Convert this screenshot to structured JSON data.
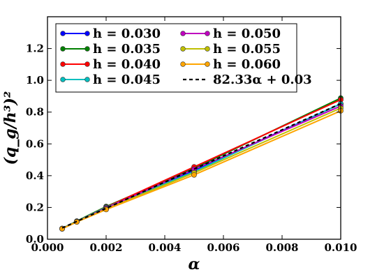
{
  "chart_data": {
    "type": "line",
    "title": "",
    "xlabel": "α",
    "ylabel": "(q_g/h³)²",
    "xlim": [
      0.0,
      0.01
    ],
    "ylim": [
      0.0,
      1.4
    ],
    "grid": false,
    "legend_placement": "top-left",
    "x_ticks": [
      "0.000",
      "0.002",
      "0.004",
      "0.006",
      "0.008",
      "0.010"
    ],
    "y_ticks": [
      "0.0",
      "0.2",
      "0.4",
      "0.6",
      "0.8",
      "1.0",
      "1.2"
    ],
    "x": [
      0.0005,
      0.001,
      0.002,
      0.005,
      0.01
    ],
    "series": [
      {
        "name": "h = 0.030",
        "color": "#0000ff",
        "values": [
          0.066,
          0.11,
          0.198,
          0.432,
          0.852
        ]
      },
      {
        "name": "h = 0.035",
        "color": "#008000",
        "values": [
          0.068,
          0.114,
          0.206,
          0.446,
          0.888
        ]
      },
      {
        "name": "h = 0.040",
        "color": "#ff0000",
        "values": [
          0.067,
          0.112,
          0.202,
          0.455,
          0.878
        ]
      },
      {
        "name": "h = 0.045",
        "color": "#00bfbf",
        "values": [
          0.067,
          0.112,
          0.2,
          0.425,
          0.852
        ]
      },
      {
        "name": "h = 0.050",
        "color": "#bf00bf",
        "values": [
          0.066,
          0.11,
          0.196,
          0.44,
          0.838
        ]
      },
      {
        "name": "h = 0.055",
        "color": "#bfbf00",
        "values": [
          0.066,
          0.11,
          0.19,
          0.418,
          0.825
        ]
      },
      {
        "name": "h = 0.060",
        "color": "#ffa500",
        "values": [
          0.066,
          0.109,
          0.187,
          0.405,
          0.808
        ]
      }
    ],
    "fit_line": {
      "name": "82.33α + 0.03",
      "color": "#000000",
      "x": [
        0.0005,
        0.01
      ],
      "values": [
        0.0712,
        0.8533
      ]
    }
  }
}
